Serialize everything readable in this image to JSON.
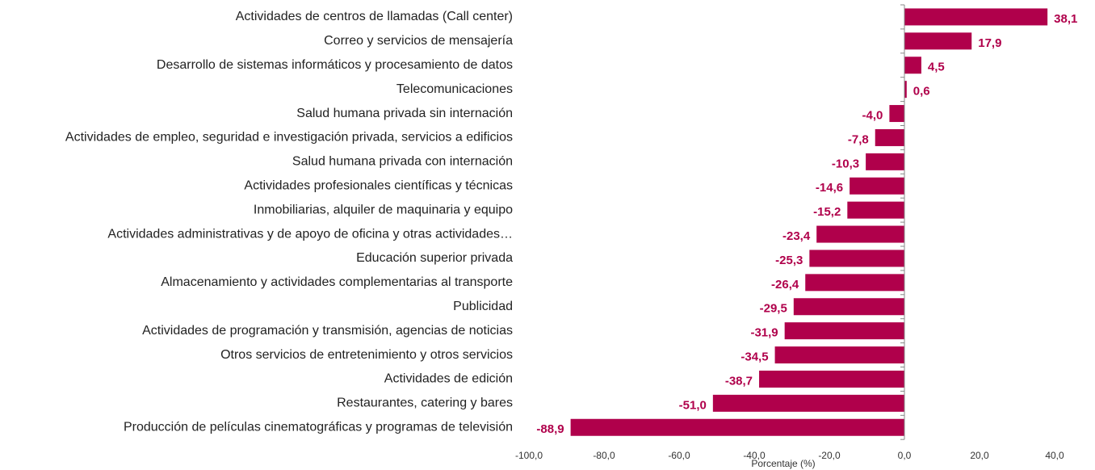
{
  "chart_data": {
    "type": "barh",
    "categories": [
      "Actividades de centros de llamadas (Call center)",
      "Correo y servicios de mensajería",
      "Desarrollo de sistemas informáticos y procesamiento de datos",
      "Telecomunicaciones",
      "Salud humana privada sin internación",
      "Actividades de empleo, seguridad e investigación privada, servicios a edificios",
      "Salud humana privada con internación",
      "Actividades profesionales científicas y técnicas",
      "Inmobiliarias, alquiler de maquinaria y equipo",
      "Actividades administrativas y de apoyo de oficina y otras actividades…",
      "Educación superior privada",
      "Almacenamiento y actividades complementarias al transporte",
      "Publicidad",
      "Actividades de programación y transmisión,  agencias de noticias",
      "Otros servicios de entretenimiento y otros servicios",
      "Actividades de edición",
      "Restaurantes, catering y bares",
      "Producción de películas cinematográficas y programas de televisión"
    ],
    "values": [
      38.1,
      17.9,
      4.5,
      0.6,
      -4.0,
      -7.8,
      -10.3,
      -14.6,
      -15.2,
      -23.4,
      -25.3,
      -26.4,
      -29.5,
      -31.9,
      -34.5,
      -38.7,
      -51.0,
      -88.9
    ],
    "value_labels": [
      "38,1",
      "17,9",
      "4,5",
      "0,6",
      "-4,0",
      "-7,8",
      "-10,3",
      "-14,6",
      "-15,2",
      "-23,4",
      "-25,3",
      "-26,4",
      "-29,5",
      "-31,9",
      "-34,5",
      "-38,7",
      "-51,0",
      "-88,9"
    ],
    "color": "#b0004b",
    "xlim": [
      -100,
      40
    ],
    "xticks": [
      {
        "value": -100,
        "label": "-100,0"
      },
      {
        "value": -80,
        "label": "-80,0"
      },
      {
        "value": -60,
        "label": "-60,0"
      },
      {
        "value": -40,
        "label": "-40,0"
      },
      {
        "value": -20,
        "label": "-20,0"
      },
      {
        "value": 0,
        "label": "0,0"
      },
      {
        "value": 20,
        "label": "20,0"
      },
      {
        "value": 40,
        "label": "40,0"
      }
    ],
    "xlabel": "Porcentaje (%)"
  }
}
